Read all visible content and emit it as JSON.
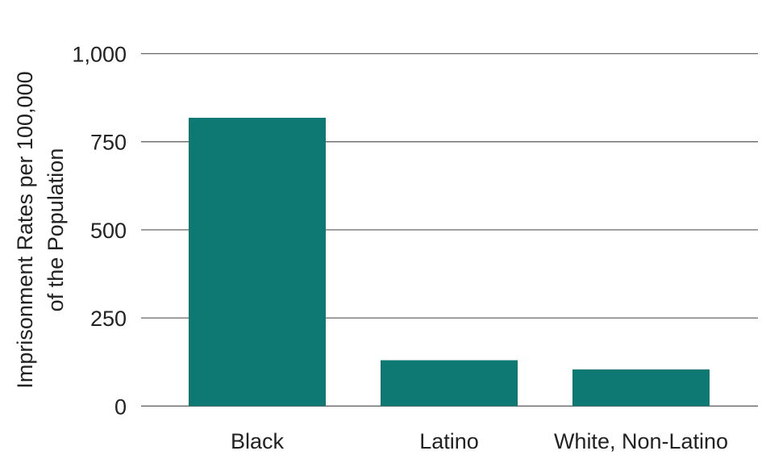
{
  "chart_data": {
    "type": "bar",
    "title": "",
    "xlabel": "",
    "ylabel_lines": [
      "Imprisonment Rates per 100,000",
      "of the Population"
    ],
    "categories": [
      "Black",
      "Latino",
      "White, Non-Latino"
    ],
    "values": [
      818,
      130,
      104
    ],
    "ylim": [
      0,
      1000
    ],
    "yticks": [
      0,
      250,
      500,
      750,
      1000
    ],
    "ytick_labels": [
      "0",
      "250",
      "500",
      "750",
      "1,000"
    ],
    "grid": true,
    "bar_color": "#0e7872",
    "grid_color": "#666666"
  }
}
